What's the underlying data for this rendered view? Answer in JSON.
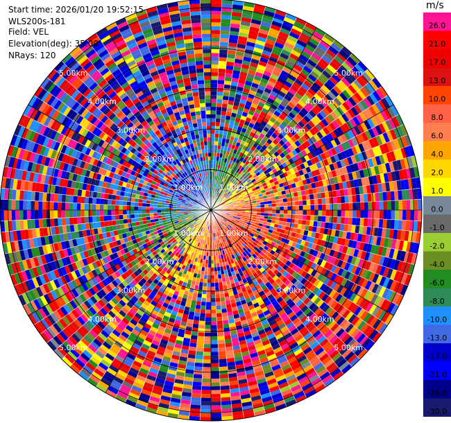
{
  "header": {
    "start_time": "Start time: 2026/01/20 19:52:15",
    "instrument": "WLS200s-181",
    "field": "Field: VEL",
    "elevation": "Elevation(deg): 35.00",
    "nrays": "NRays: 120"
  },
  "chart_data": {
    "type": "heatmap",
    "projection": "polar (PPI scan)",
    "field": "VEL",
    "units": "m/s",
    "elevation_deg": 35.0,
    "n_rays": 120,
    "range_ring_labels": [
      "1.00km",
      "2.00km",
      "3.00km",
      "4.00km",
      "5.00km"
    ],
    "range_rings_km": [
      1,
      2,
      3,
      4,
      5
    ],
    "colorbar": {
      "title": "m/s",
      "levels": [
        26.0,
        21.0,
        17.0,
        13.0,
        10.0,
        8.0,
        6.0,
        4.0,
        2.0,
        1.0,
        0.0,
        -1.0,
        -2.0,
        -4.0,
        -6.0,
        -8.0,
        -10.0,
        -13.0,
        -17.0,
        -21.0,
        -26.0,
        -30.0
      ],
      "level_labels": [
        "26.0",
        "21.0",
        "17.0",
        "13.0",
        "10.0",
        "8.0",
        "6.0",
        "4.0",
        "2.0",
        "1.0",
        "0.0",
        "-1.0",
        "-2.0",
        "-4.0",
        "-6.0",
        "-8.0",
        "-10.0",
        "-13.0",
        "-17.0",
        "-21.0",
        "-26.0",
        "-30.0"
      ],
      "colors": [
        "#ff1493",
        "#ff0000",
        "#ee0000",
        "#dd1111",
        "#ff4500",
        "#ff6347",
        "#ff7f50",
        "#ffa500",
        "#ffd700",
        "#ffff00",
        "#778899",
        "#696969",
        "#9acd32",
        "#6b8e23",
        "#228b22",
        "#2e8b57",
        "#1e90ff",
        "#4169e1",
        "#0000cd",
        "#0000ff",
        "#00008b",
        "#191970"
      ]
    },
    "dominant_pattern": "Positive velocities (orange/red) to the south-east, negative velocities (green/blue) to the north-west; noisy speckle beyond ~2 km."
  }
}
